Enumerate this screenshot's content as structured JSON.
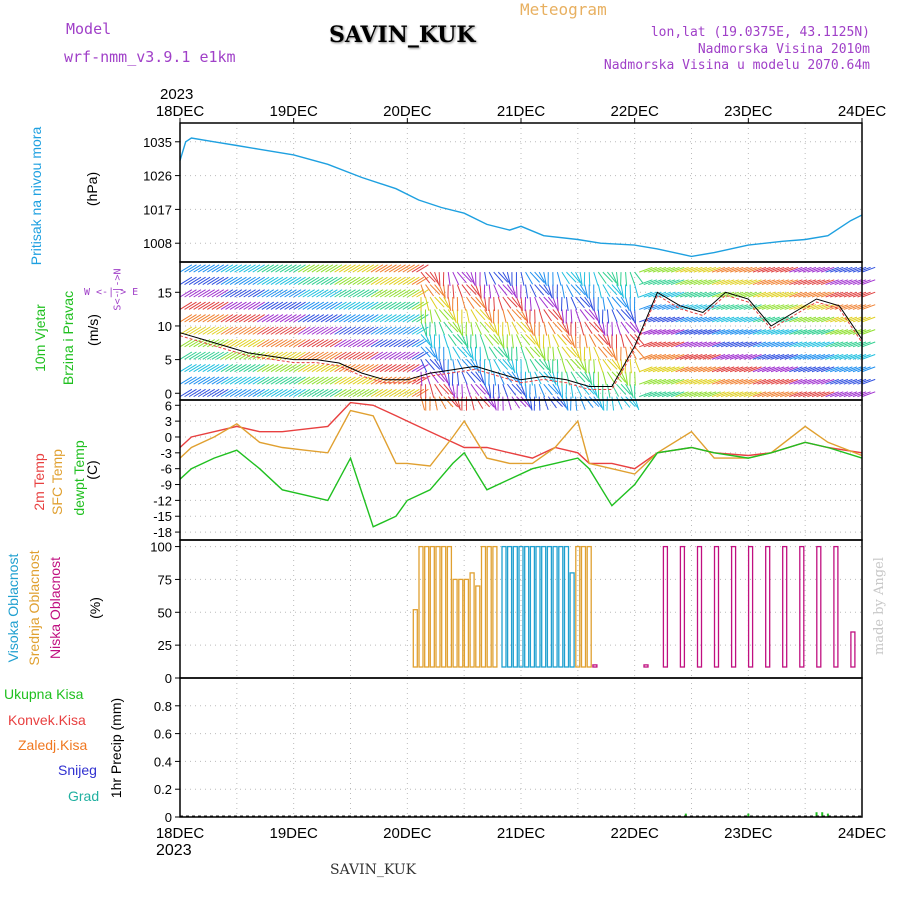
{
  "header": {
    "model_label": "Model",
    "model_name": "wrf-nmm_v3.9.1  e1km",
    "station": "SAVIN_KUK",
    "product": "Meteogram",
    "lonlat": "lon,lat (19.0375E, 43.1125N)",
    "altitude": "Nadmorska Visina 2010m",
    "model_altitude": "Nadmorska Visina u modelu 2070.64m"
  },
  "footer": {
    "station": "SAVIN_KUK",
    "credit": "made by Angel"
  },
  "axis_top": {
    "year": "2023",
    "dates": [
      "18DEC",
      "19DEC",
      "20DEC",
      "21DEC",
      "22DEC",
      "23DEC",
      "24DEC"
    ]
  },
  "axis_bottom": {
    "year": "2023",
    "dates": [
      "18DEC",
      "19DEC",
      "20DEC",
      "21DEC",
      "22DEC",
      "23DEC",
      "24DEC"
    ]
  },
  "colors": {
    "pressure": "#1ea0e0",
    "wind_title": "#20c020",
    "temp2m": "#e84040",
    "sfc": "#e0a030",
    "dew": "#20c020",
    "high_cloud": "#20a0d0",
    "mid_cloud": "#e0a030",
    "low_cloud": "#c01080",
    "total": "#20c020",
    "conv": "#e84040",
    "freez": "#f07820",
    "snow": "#3030d0",
    "hail": "#20b0a0",
    "purple": "#a040c8"
  },
  "panels": {
    "pressure": {
      "title": "Pritisak na nivou mora",
      "unit": "(hPa)"
    },
    "wind": {
      "title1": "10m Vjetar",
      "title2": "Brzina i Pravac",
      "unit": "(m/s)",
      "compass": "W <-|-> E",
      "compass_ns": "S<-|->N"
    },
    "temp": {
      "t1": "2m Temp",
      "t2": "SFC Temp",
      "t3": "dewpt Temp",
      "unit": "(C)"
    },
    "cloud": {
      "t1": "Visoka Oblacnost",
      "t2": "Srednja Oblacnost",
      "t3": "Niska Oblacnost",
      "unit": "(%)"
    },
    "precip": {
      "t1": "Ukupna Kisa",
      "t2": "Konvek.Kisa",
      "t3": "Zaledj.Kisa",
      "t4": "Snijeg",
      "t5": "Grad",
      "unit": "1hr Precip (mm)"
    }
  },
  "chart_data": [
    {
      "type": "line",
      "name": "pressure",
      "x_range_days": [
        18,
        24
      ],
      "ylim": [
        1003,
        1040
      ],
      "yticks": [
        1008,
        1017,
        1026,
        1035
      ],
      "series": [
        {
          "x": [
            18.0,
            18.05,
            18.1,
            18.3,
            18.5,
            18.7,
            19.0,
            19.3,
            19.6,
            19.9,
            20.1,
            20.3,
            20.5,
            20.7,
            20.9,
            21.0,
            21.2,
            21.5,
            21.7,
            22.0,
            22.2,
            22.5,
            22.7,
            23.0,
            23.3,
            23.5,
            23.7,
            23.9,
            24.0
          ],
          "y": [
            1030,
            1035,
            1036,
            1035,
            1034,
            1033,
            1031.5,
            1029,
            1025.5,
            1022.5,
            1019.5,
            1017.5,
            1016,
            1013,
            1011.5,
            1012.5,
            1010,
            1009,
            1008,
            1007.5,
            1006.5,
            1004.5,
            1005.5,
            1007.5,
            1008.5,
            1009,
            1010,
            1014,
            1015.5
          ]
        }
      ]
    },
    {
      "type": "barbs",
      "name": "wind",
      "x_range_days": [
        18,
        24
      ],
      "ylim": [
        -1,
        19.5
      ],
      "yticks": [
        0,
        5,
        10,
        15
      ],
      "series": [
        {
          "x": [
            18.0,
            18.2,
            18.4,
            18.6,
            18.8,
            19.0,
            19.2,
            19.4,
            19.6,
            19.8,
            20.0,
            20.2,
            20.4,
            20.6,
            20.8,
            21.0,
            21.2,
            21.4,
            21.6,
            21.8,
            22.0,
            22.2,
            22.4,
            22.6,
            22.8,
            23.0,
            23.2,
            23.4,
            23.6,
            23.8,
            24.0
          ],
          "y": [
            9,
            8,
            7,
            6,
            5.5,
            5,
            5,
            4.5,
            3,
            2,
            2,
            3,
            3.5,
            4,
            3,
            2,
            2.5,
            2,
            1,
            1,
            7,
            15,
            13,
            12,
            15,
            14,
            10,
            12,
            14,
            13,
            8
          ]
        }
      ]
    },
    {
      "type": "line",
      "name": "temperature",
      "x_range_days": [
        18,
        24
      ],
      "ylim": [
        -19.5,
        7
      ],
      "yticks": [
        6,
        3,
        0,
        -3,
        -6,
        -9,
        -12,
        -15,
        -18
      ],
      "series": [
        {
          "x": [
            18.0,
            18.1,
            18.3,
            18.5,
            18.7,
            18.9,
            19.1,
            19.3,
            19.5,
            19.7,
            19.9,
            20.0,
            20.2,
            20.4,
            20.5,
            20.7,
            20.9,
            21.1,
            21.3,
            21.5,
            21.6,
            21.8,
            22.0,
            22.2,
            22.5,
            22.7,
            23.0,
            23.2,
            23.5,
            23.7,
            24.0
          ],
          "y": [
            -2,
            0,
            1,
            2,
            1,
            1,
            1.5,
            2,
            6.5,
            6,
            4,
            3,
            1,
            -1,
            -2,
            -2,
            -3,
            -4,
            -2,
            -3,
            -5,
            -5,
            -6,
            -3,
            -2,
            -3,
            -3.5,
            -3,
            -1,
            -2,
            -3
          ]
        },
        {
          "x": [
            18.0,
            18.1,
            18.3,
            18.5,
            18.7,
            18.9,
            19.1,
            19.3,
            19.5,
            19.7,
            19.9,
            20.0,
            20.2,
            20.4,
            20.5,
            20.7,
            20.9,
            21.1,
            21.3,
            21.5,
            21.6,
            21.8,
            22.0,
            22.2,
            22.5,
            22.7,
            23.0,
            23.2,
            23.5,
            23.7,
            24.0
          ],
          "y": [
            -4,
            -2,
            0,
            2.5,
            -1,
            -2,
            -2.5,
            -3,
            5,
            4,
            -5,
            -5,
            -5.5,
            0,
            3,
            -4,
            -5,
            -5,
            -2,
            3,
            -5,
            -6,
            -7,
            -3,
            1,
            -4,
            -4,
            -3,
            2,
            -1,
            -3.5
          ]
        },
        {
          "x": [
            18.0,
            18.1,
            18.3,
            18.5,
            18.7,
            18.9,
            19.1,
            19.3,
            19.5,
            19.7,
            19.9,
            20.0,
            20.2,
            20.4,
            20.5,
            20.7,
            20.9,
            21.1,
            21.3,
            21.5,
            21.6,
            21.8,
            22.0,
            22.2,
            22.5,
            22.7,
            23.0,
            23.2,
            23.5,
            23.7,
            24.0
          ],
          "y": [
            -8,
            -6,
            -4,
            -2.5,
            -6,
            -10,
            -11,
            -12,
            -4,
            -17,
            -15,
            -12,
            -10,
            -5,
            -3,
            -10,
            -8,
            -6,
            -5,
            -4,
            -6,
            -13,
            -9,
            -3,
            -2,
            -3,
            -4,
            -3,
            -1,
            -2,
            -4
          ]
        }
      ]
    },
    {
      "type": "bar",
      "name": "cloud",
      "x_range_days": [
        18,
        24
      ],
      "ylim": [
        0,
        105
      ],
      "yticks": [
        0,
        25,
        50,
        75,
        100
      ],
      "series": [
        {
          "x": [
            20.85,
            20.9,
            20.95,
            21.0,
            21.05,
            21.1,
            21.15,
            21.2,
            21.25,
            21.3,
            21.35,
            21.4,
            21.45
          ],
          "values": [
            100,
            100,
            100,
            100,
            100,
            100,
            100,
            100,
            100,
            100,
            100,
            100,
            80
          ]
        },
        {
          "x": [
            20.07,
            20.12,
            20.17,
            20.22,
            20.27,
            20.32,
            20.37,
            20.42,
            20.47,
            20.52,
            20.57,
            20.62,
            20.67,
            20.72,
            20.77,
            21.5,
            21.55,
            21.6
          ],
          "values": [
            52,
            100,
            100,
            100,
            100,
            100,
            100,
            75,
            75,
            75,
            80,
            70,
            100,
            100,
            100,
            100,
            100,
            100
          ]
        },
        {
          "x": [
            21.65,
            21.95,
            22.1,
            22.27,
            22.42,
            22.57,
            22.72,
            22.87,
            23.02,
            23.17,
            23.32,
            23.47,
            23.62,
            23.77,
            23.92
          ],
          "values": [
            10,
            8,
            10,
            100,
            100,
            100,
            100,
            100,
            100,
            100,
            100,
            100,
            100,
            100,
            35
          ]
        }
      ]
    },
    {
      "type": "bar",
      "name": "precipitation",
      "x_range_days": [
        18,
        24
      ],
      "ylim": [
        0,
        1.0
      ],
      "yticks": [
        0,
        0.2,
        0.4,
        0.6,
        0.8
      ],
      "series": [
        {
          "x": [
            22.45,
            23.0,
            23.6,
            23.65,
            23.7
          ],
          "values": [
            0.01,
            0.01,
            0.02,
            0.02,
            0.01
          ]
        }
      ]
    }
  ]
}
